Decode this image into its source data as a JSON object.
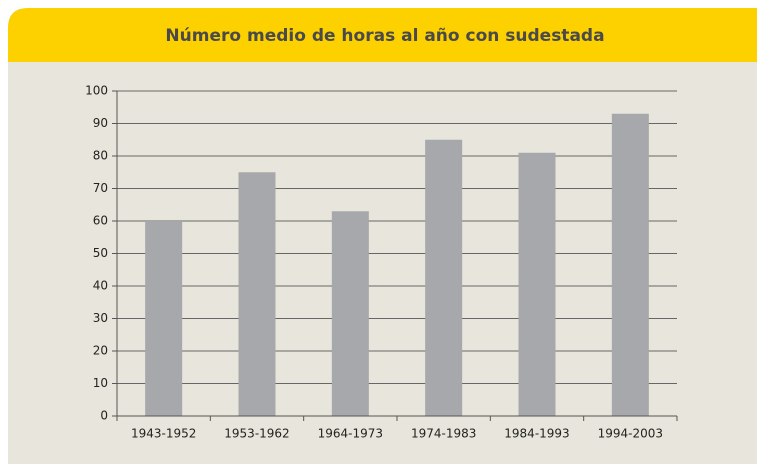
{
  "chart_data": {
    "type": "bar",
    "title": "Número medio de horas al año con sudestada",
    "categories": [
      "1943-1952",
      "1953-1962",
      "1964-1973",
      "1974-1983",
      "1984-1993",
      "1994-2003"
    ],
    "values": [
      60,
      75,
      63,
      85,
      81,
      93
    ],
    "color": "#a7a8ab",
    "ylim": [
      0,
      100
    ],
    "yticks": [
      0,
      10,
      20,
      30,
      40,
      50,
      60,
      70,
      80,
      90,
      100
    ],
    "grid": true
  }
}
